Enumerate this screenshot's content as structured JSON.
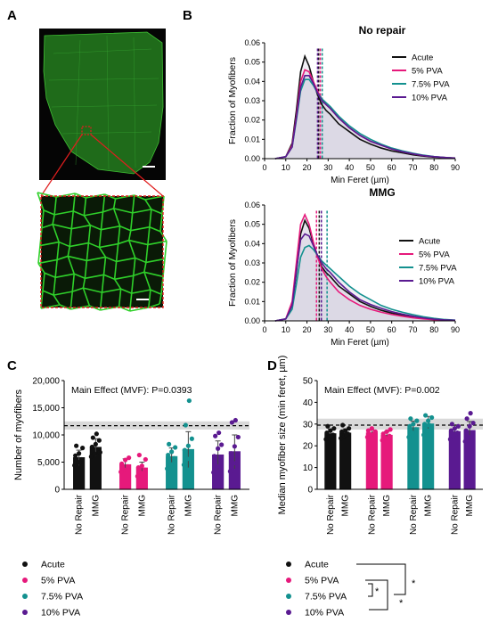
{
  "panels": {
    "a": "A",
    "b": "B",
    "c": "C",
    "d": "D"
  },
  "colors": {
    "Acute": "#111111",
    "5% PVA": "#e6197b",
    "7.5% PVA": "#13918f",
    "10% PVA": "#5a1a91",
    "fill": "#d4d1e0",
    "micro_bg": "#0a1a07",
    "micro_fiber": "#2fd02a",
    "box_red": "#e01e1e",
    "band": "#d9d9d9"
  },
  "chart_data": [
    {
      "id": "B-top",
      "type": "line",
      "title": "No repair",
      "xlabel": "Min  Feret (µm)",
      "ylabel": "Fraction of Myofibers",
      "xlim": [
        0,
        90
      ],
      "ylim": [
        0,
        0.06
      ],
      "xticks": [
        "0",
        "10",
        "20",
        "30",
        "40",
        "50",
        "60",
        "70",
        "80",
        "90"
      ],
      "yticks": [
        "0.00",
        "0.01",
        "0.02",
        "0.03",
        "0.04",
        "0.05",
        "0.06"
      ],
      "legend": "top-right",
      "x": [
        5,
        10,
        13,
        15,
        17,
        19,
        21,
        23,
        25,
        27,
        29,
        31,
        35,
        40,
        45,
        50,
        55,
        60,
        65,
        70,
        75,
        80,
        85,
        90
      ],
      "series": [
        {
          "name": "Acute",
          "values": [
            0,
            0.001,
            0.008,
            0.025,
            0.045,
            0.053,
            0.048,
            0.04,
            0.033,
            0.028,
            0.025,
            0.023,
            0.018,
            0.014,
            0.01,
            0.0075,
            0.0055,
            0.004,
            0.003,
            0.002,
            0.0013,
            0.0008,
            0.0005,
            0.0003
          ],
          "median": 25.5
        },
        {
          "name": "5% PVA",
          "values": [
            0,
            0.001,
            0.007,
            0.022,
            0.04,
            0.046,
            0.045,
            0.04,
            0.035,
            0.031,
            0.028,
            0.026,
            0.021,
            0.016,
            0.012,
            0.009,
            0.007,
            0.005,
            0.0036,
            0.0025,
            0.0016,
            0.001,
            0.0006,
            0.0003
          ],
          "median": 26.3
        },
        {
          "name": "7.5% PVA",
          "values": [
            0,
            0.001,
            0.006,
            0.02,
            0.035,
            0.041,
            0.041,
            0.038,
            0.034,
            0.031,
            0.029,
            0.027,
            0.022,
            0.017,
            0.013,
            0.01,
            0.0075,
            0.0055,
            0.004,
            0.0028,
            0.0018,
            0.0011,
            0.0006,
            0.0003
          ],
          "median": 27.2
        },
        {
          "name": "10% PVA",
          "values": [
            0,
            0.001,
            0.006,
            0.021,
            0.037,
            0.043,
            0.043,
            0.039,
            0.034,
            0.03,
            0.028,
            0.026,
            0.021,
            0.016,
            0.012,
            0.009,
            0.007,
            0.005,
            0.0036,
            0.0025,
            0.0016,
            0.001,
            0.0006,
            0.0003
          ],
          "median": 25.0
        }
      ]
    },
    {
      "id": "B-bottom",
      "type": "line",
      "title": "MMG",
      "xlabel": "Min  Feret (µm)",
      "ylabel": "Fraction of Myofibers",
      "xlim": [
        0,
        90
      ],
      "ylim": [
        0,
        0.06
      ],
      "xticks": [
        "0",
        "10",
        "20",
        "30",
        "40",
        "50",
        "60",
        "70",
        "80",
        "90"
      ],
      "yticks": [
        "0.00",
        "0.01",
        "0.02",
        "0.03",
        "0.04",
        "0.05",
        "0.06"
      ],
      "legend": "right",
      "x": [
        5,
        10,
        13,
        15,
        17,
        19,
        21,
        23,
        25,
        27,
        29,
        31,
        35,
        40,
        45,
        50,
        55,
        60,
        65,
        70,
        75,
        80,
        85,
        90
      ],
      "series": [
        {
          "name": "Acute",
          "values": [
            0,
            0.001,
            0.008,
            0.025,
            0.045,
            0.052,
            0.048,
            0.04,
            0.033,
            0.028,
            0.025,
            0.023,
            0.018,
            0.014,
            0.01,
            0.0075,
            0.0055,
            0.004,
            0.003,
            0.002,
            0.0013,
            0.0008,
            0.0005,
            0.0003
          ],
          "median": 25.8
        },
        {
          "name": "5% PVA",
          "values": [
            0,
            0.001,
            0.01,
            0.03,
            0.05,
            0.055,
            0.05,
            0.041,
            0.033,
            0.027,
            0.023,
            0.02,
            0.015,
            0.011,
            0.008,
            0.006,
            0.0045,
            0.0033,
            0.0024,
            0.0016,
            0.001,
            0.0006,
            0.0003,
            0.0002
          ],
          "median": 24.5
        },
        {
          "name": "7.5% PVA",
          "values": [
            0,
            0.001,
            0.006,
            0.019,
            0.033,
            0.038,
            0.039,
            0.037,
            0.034,
            0.031,
            0.029,
            0.027,
            0.023,
            0.018,
            0.014,
            0.011,
            0.008,
            0.006,
            0.0045,
            0.0032,
            0.0021,
            0.0013,
            0.0007,
            0.0004
          ],
          "median": 29.5
        },
        {
          "name": "10% PVA",
          "values": [
            0,
            0.001,
            0.008,
            0.026,
            0.042,
            0.045,
            0.044,
            0.039,
            0.034,
            0.03,
            0.027,
            0.025,
            0.02,
            0.015,
            0.011,
            0.0085,
            0.0065,
            0.0048,
            0.0035,
            0.0024,
            0.0015,
            0.0009,
            0.0005,
            0.0003
          ],
          "median": 26.8
        }
      ]
    },
    {
      "id": "C",
      "type": "bar",
      "title": "Main Effect (MVF): P=0.0393",
      "ylabel": "Number of myofibers",
      "ylim": [
        0,
        20000
      ],
      "yticks": [
        "0",
        "5,000",
        "10,000",
        "15,000",
        "20,000"
      ],
      "dashed_line": 11700,
      "band": [
        11000,
        12500
      ],
      "categories": [
        "No Repair",
        "MMG",
        "No Repair",
        "MMG",
        "No Repair",
        "MMG",
        "No Repair",
        "MMG"
      ],
      "groups": [
        "Acute",
        "Acute",
        "5% PVA",
        "5% PVA",
        "7.5% PVA",
        "7.5% PVA",
        "10% PVA",
        "10% PVA"
      ],
      "values": [
        5800,
        7700,
        4500,
        3900,
        6000,
        7300,
        6300,
        6900
      ],
      "errors": [
        1400,
        1600,
        1100,
        1100,
        1600,
        3300,
        2600,
        3100
      ],
      "points": [
        [
          4400,
          5000,
          5500,
          6200,
          6600,
          7600,
          8000,
          4900
        ],
        [
          6000,
          6500,
          7000,
          7800,
          8300,
          9000,
          9500,
          10200,
          6800
        ],
        [
          3200,
          3600,
          4200,
          4700,
          5400,
          5800,
          4000
        ],
        [
          2400,
          3000,
          3600,
          4000,
          4300,
          5500,
          6300
        ],
        [
          3800,
          4600,
          5700,
          6300,
          6900,
          7700,
          8300
        ],
        [
          4500,
          5600,
          6300,
          7200,
          8000,
          9300,
          11800,
          16300
        ],
        [
          3100,
          4200,
          5300,
          6100,
          7500,
          8200,
          9800,
          10400
        ],
        [
          3300,
          4800,
          6000,
          6600,
          7900,
          9600,
          12300,
          12700
        ]
      ]
    },
    {
      "id": "D",
      "type": "bar",
      "title": "Main  Effect (MVF):  P=0.002",
      "ylabel": "Median myofiber size (min feret, µm)",
      "ylim": [
        0,
        50
      ],
      "yticks": [
        "0",
        "10",
        "20",
        "30",
        "40",
        "50"
      ],
      "dashed_line": 29.5,
      "band": [
        27.5,
        32.5
      ],
      "categories": [
        "No Repair",
        "MMG",
        "No Repair",
        "MMG",
        "No Repair",
        "MMG",
        "No Repair",
        "MMG"
      ],
      "groups": [
        "Acute",
        "Acute",
        "5% PVA",
        "5% PVA",
        "7.5% PVA",
        "7.5% PVA",
        "10% PVA",
        "10% PVA"
      ],
      "values": [
        25.5,
        25.8,
        25.9,
        24.8,
        28.3,
        30.0,
        26.5,
        27.0
      ],
      "errors": [
        2.2,
        2.0,
        1.4,
        1.8,
        3.0,
        3.5,
        2.8,
        4.2
      ],
      "points": [
        [
          23,
          24,
          25,
          26,
          27,
          28,
          29,
          24.5
        ],
        [
          23.5,
          24.5,
          25.5,
          26.5,
          27,
          28,
          29.5,
          25
        ],
        [
          24,
          25,
          26,
          27,
          28,
          26.5,
          25.5
        ],
        [
          22.5,
          23.5,
          24.5,
          25.5,
          26.5,
          27.5,
          24
        ],
        [
          24,
          26,
          27.5,
          29,
          30,
          31.5,
          32.5
        ],
        [
          25,
          27,
          28.5,
          30,
          31.5,
          33,
          34,
          29.5
        ],
        [
          23,
          24.5,
          26,
          27,
          28,
          29,
          30,
          25.5
        ],
        [
          22,
          24,
          25.5,
          27,
          29,
          30.5,
          32.5,
          35
        ]
      ]
    }
  ],
  "legend_items": [
    "Acute",
    "5% PVA",
    "7.5% PVA",
    "10% PVA"
  ],
  "significance": "*"
}
